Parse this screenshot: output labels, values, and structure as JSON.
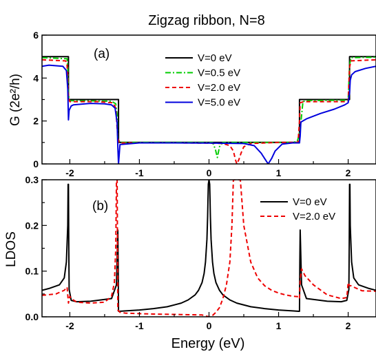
{
  "title": "Zigzag ribbon, N=8",
  "xlabel": "Energy (eV)",
  "chart_data": [
    {
      "id": "a",
      "type": "line",
      "panel_label": "(a)",
      "ylabel": "G (2e²/h)",
      "xlim": [
        -2.4,
        2.4
      ],
      "ylim": [
        0,
        6
      ],
      "xticks": [
        -2,
        -1,
        0,
        1,
        2
      ],
      "yticks": [
        0,
        2,
        4,
        6
      ],
      "legend_position": "top-center",
      "series": [
        {
          "name": "V=0 eV",
          "color": "#000000",
          "dash": "none",
          "x": [
            -2.4,
            -2.02,
            -2.02,
            -1.3,
            -1.3,
            1.3,
            1.3,
            2.02,
            2.02,
            2.4
          ],
          "y": [
            5,
            5,
            3,
            3,
            1,
            1,
            3,
            3,
            5,
            5
          ]
        },
        {
          "name": "V=0.5 eV",
          "color": "#00cc00",
          "dash": "8,3,2,3",
          "x": [
            -2.4,
            -2.04,
            -2.03,
            -2.02,
            -2.0,
            -1.4,
            -1.34,
            -1.32,
            -1.31,
            -1.28,
            -0.3,
            0.05,
            0.09,
            0.12,
            0.15,
            0.2,
            0.3,
            1.2,
            1.27,
            1.31,
            1.35,
            1.4,
            2.0,
            2.02,
            2.04,
            2.4
          ],
          "y": [
            4.95,
            4.9,
            4.5,
            3.2,
            2.95,
            2.92,
            2.8,
            2.3,
            1.2,
            1.0,
            1.0,
            1.0,
            0.7,
            0.3,
            0.8,
            1.0,
            1.0,
            1.0,
            1.05,
            1.6,
            2.9,
            2.95,
            2.97,
            4.6,
            4.95,
            4.97
          ]
        },
        {
          "name": "V=2.0 eV",
          "color": "#ee0000",
          "dash": "6,4",
          "x": [
            -2.4,
            -2.06,
            -2.04,
            -2.02,
            -2.0,
            -1.6,
            -1.38,
            -1.34,
            -1.31,
            -1.29,
            -0.5,
            0.0,
            0.2,
            0.3,
            0.35,
            0.38,
            0.4,
            0.43,
            0.46,
            0.5,
            0.6,
            1.0,
            1.28,
            1.3,
            1.31,
            1.36,
            1.8,
            2.0,
            2.02,
            2.04,
            2.4
          ],
          "y": [
            4.85,
            4.8,
            4.6,
            3.1,
            2.9,
            2.9,
            2.85,
            2.6,
            1.2,
            0.98,
            0.98,
            0.97,
            0.95,
            0.85,
            0.6,
            0.2,
            0.0,
            0.2,
            0.5,
            0.8,
            0.95,
            1.0,
            1.0,
            2.0,
            2.85,
            2.9,
            2.9,
            2.9,
            4.5,
            4.8,
            4.85
          ]
        },
        {
          "name": "V=5.0 eV",
          "color": "#0000dd",
          "dash": "none",
          "x": [
            -2.4,
            -2.3,
            -2.1,
            -2.05,
            -2.03,
            -2.02,
            -2.01,
            -1.98,
            -1.95,
            -1.7,
            -1.5,
            -1.4,
            -1.35,
            -1.32,
            -1.31,
            -1.3,
            -1.28,
            -1.0,
            -0.5,
            0.0,
            0.5,
            0.65,
            0.75,
            0.8,
            0.85,
            0.9,
            0.95,
            1.05,
            1.2,
            1.3,
            1.31,
            1.32,
            1.4,
            1.6,
            1.8,
            1.95,
            2.0,
            2.02,
            2.03,
            2.05,
            2.1,
            2.25,
            2.4
          ],
          "y": [
            4.55,
            4.6,
            4.55,
            4.35,
            3.5,
            2.05,
            2.5,
            2.7,
            2.75,
            2.82,
            2.8,
            2.75,
            2.6,
            1.9,
            0.8,
            0.0,
            0.9,
            0.98,
            0.98,
            0.97,
            0.95,
            0.85,
            0.5,
            0.25,
            0.0,
            0.25,
            0.6,
            0.92,
            0.98,
            0.98,
            1.3,
            1.95,
            2.1,
            2.35,
            2.55,
            2.75,
            2.85,
            3.3,
            3.9,
            4.15,
            4.3,
            4.45,
            4.55
          ]
        }
      ]
    },
    {
      "id": "b",
      "type": "line",
      "panel_label": "(b)",
      "ylabel": "LDOS",
      "xlim": [
        -2.4,
        2.4
      ],
      "ylim": [
        0,
        0.3
      ],
      "xticks": [
        -2,
        -1,
        0,
        1,
        2
      ],
      "yticks": [
        0.0,
        0.1,
        0.2,
        0.3
      ],
      "legend_position": "top-right",
      "series": [
        {
          "name": "V=0 eV",
          "color": "#000000",
          "dash": "none",
          "x": [
            -2.4,
            -2.3,
            -2.15,
            -2.08,
            -2.05,
            -2.03,
            -2.025,
            -2.02,
            -2.015,
            -2.01,
            -1.98,
            -1.9,
            -1.7,
            -1.4,
            -1.33,
            -1.31,
            -1.305,
            -1.3,
            -1.29,
            -1.2,
            -1.0,
            -0.8,
            -0.6,
            -0.4,
            -0.3,
            -0.2,
            -0.15,
            -0.1,
            -0.07,
            -0.05,
            -0.03,
            -0.02,
            -0.01,
            0.0,
            0.01,
            0.02,
            0.03,
            0.05,
            0.07,
            0.1,
            0.15,
            0.2,
            0.3,
            0.4,
            0.6,
            0.8,
            1.0,
            1.2,
            1.29,
            1.3,
            1.305,
            1.31,
            1.33,
            1.4,
            1.7,
            1.9,
            1.98,
            2.01,
            2.015,
            2.02,
            2.025,
            2.03,
            2.05,
            2.08,
            2.15,
            2.3,
            2.4
          ],
          "y": [
            0.058,
            0.062,
            0.07,
            0.085,
            0.12,
            0.2,
            0.29,
            0.29,
            0.15,
            0.06,
            0.036,
            0.033,
            0.034,
            0.04,
            0.07,
            0.19,
            0.12,
            0.012,
            0.012,
            0.013,
            0.015,
            0.018,
            0.022,
            0.03,
            0.037,
            0.048,
            0.058,
            0.075,
            0.095,
            0.12,
            0.17,
            0.22,
            0.29,
            0.3,
            0.29,
            0.22,
            0.17,
            0.12,
            0.095,
            0.075,
            0.058,
            0.048,
            0.037,
            0.03,
            0.022,
            0.018,
            0.015,
            0.013,
            0.012,
            0.012,
            0.12,
            0.19,
            0.07,
            0.04,
            0.034,
            0.033,
            0.036,
            0.06,
            0.15,
            0.29,
            0.29,
            0.2,
            0.12,
            0.085,
            0.07,
            0.062,
            0.058
          ]
        },
        {
          "name": "V=2.0 eV",
          "color": "#ee0000",
          "dash": "6,4",
          "x": [
            -2.4,
            -2.2,
            -2.08,
            -2.04,
            -2.02,
            -2.0,
            -1.98,
            -1.9,
            -1.7,
            -1.5,
            -1.4,
            -1.36,
            -1.34,
            -1.33,
            -1.32,
            -1.31,
            -1.28,
            -1.2,
            -0.8,
            -0.4,
            -0.1,
            0.0,
            0.05,
            0.1,
            0.15,
            0.2,
            0.25,
            0.3,
            0.33,
            0.35,
            0.37,
            0.38,
            0.4,
            0.42,
            0.45,
            0.5,
            0.6,
            0.7,
            0.8,
            0.9,
            1.0,
            1.1,
            1.2,
            1.29,
            1.3,
            1.31,
            1.33,
            1.38,
            1.5,
            1.7,
            1.9,
            1.98,
            2.0,
            2.02,
            2.04,
            2.08,
            2.2,
            2.4
          ],
          "y": [
            0.047,
            0.05,
            0.058,
            0.065,
            0.03,
            0.045,
            0.04,
            0.032,
            0.03,
            0.032,
            0.045,
            0.075,
            0.15,
            0.3,
            0.3,
            0.015,
            0.01,
            0.008,
            0.006,
            0.005,
            0.004,
            0.0,
            0.003,
            0.01,
            0.02,
            0.04,
            0.07,
            0.12,
            0.2,
            0.3,
            0.3,
            0.3,
            0.3,
            0.3,
            0.3,
            0.2,
            0.12,
            0.085,
            0.068,
            0.058,
            0.052,
            0.048,
            0.045,
            0.044,
            0.04,
            0.08,
            0.105,
            0.09,
            0.07,
            0.048,
            0.04,
            0.042,
            0.075,
            0.068,
            0.068,
            0.065,
            0.057,
            0.056
          ]
        }
      ]
    }
  ]
}
